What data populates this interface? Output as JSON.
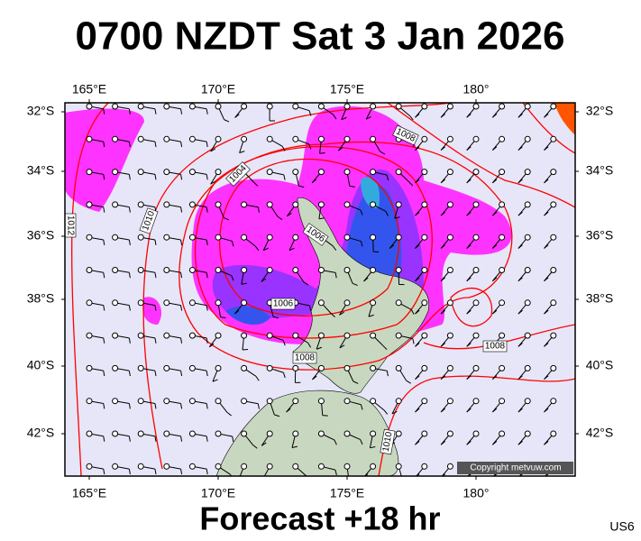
{
  "header": {
    "title": "0700 NZDT Sat 3 Jan 2026"
  },
  "map": {
    "lon_labels": [
      "165°E",
      "170°E",
      "175°E",
      "180°"
    ],
    "lat_labels": [
      "32°S",
      "34°S",
      "36°S",
      "38°S",
      "40°S",
      "42°S"
    ],
    "isobar_labels": [
      "1008",
      "1004",
      "1010",
      "1012",
      "1006",
      "1006",
      "1008",
      "1008",
      "1010"
    ],
    "copyright": "Copyright metvuw.com"
  },
  "footer": {
    "caption": "Forecast +18 hr",
    "code": "US6"
  }
}
